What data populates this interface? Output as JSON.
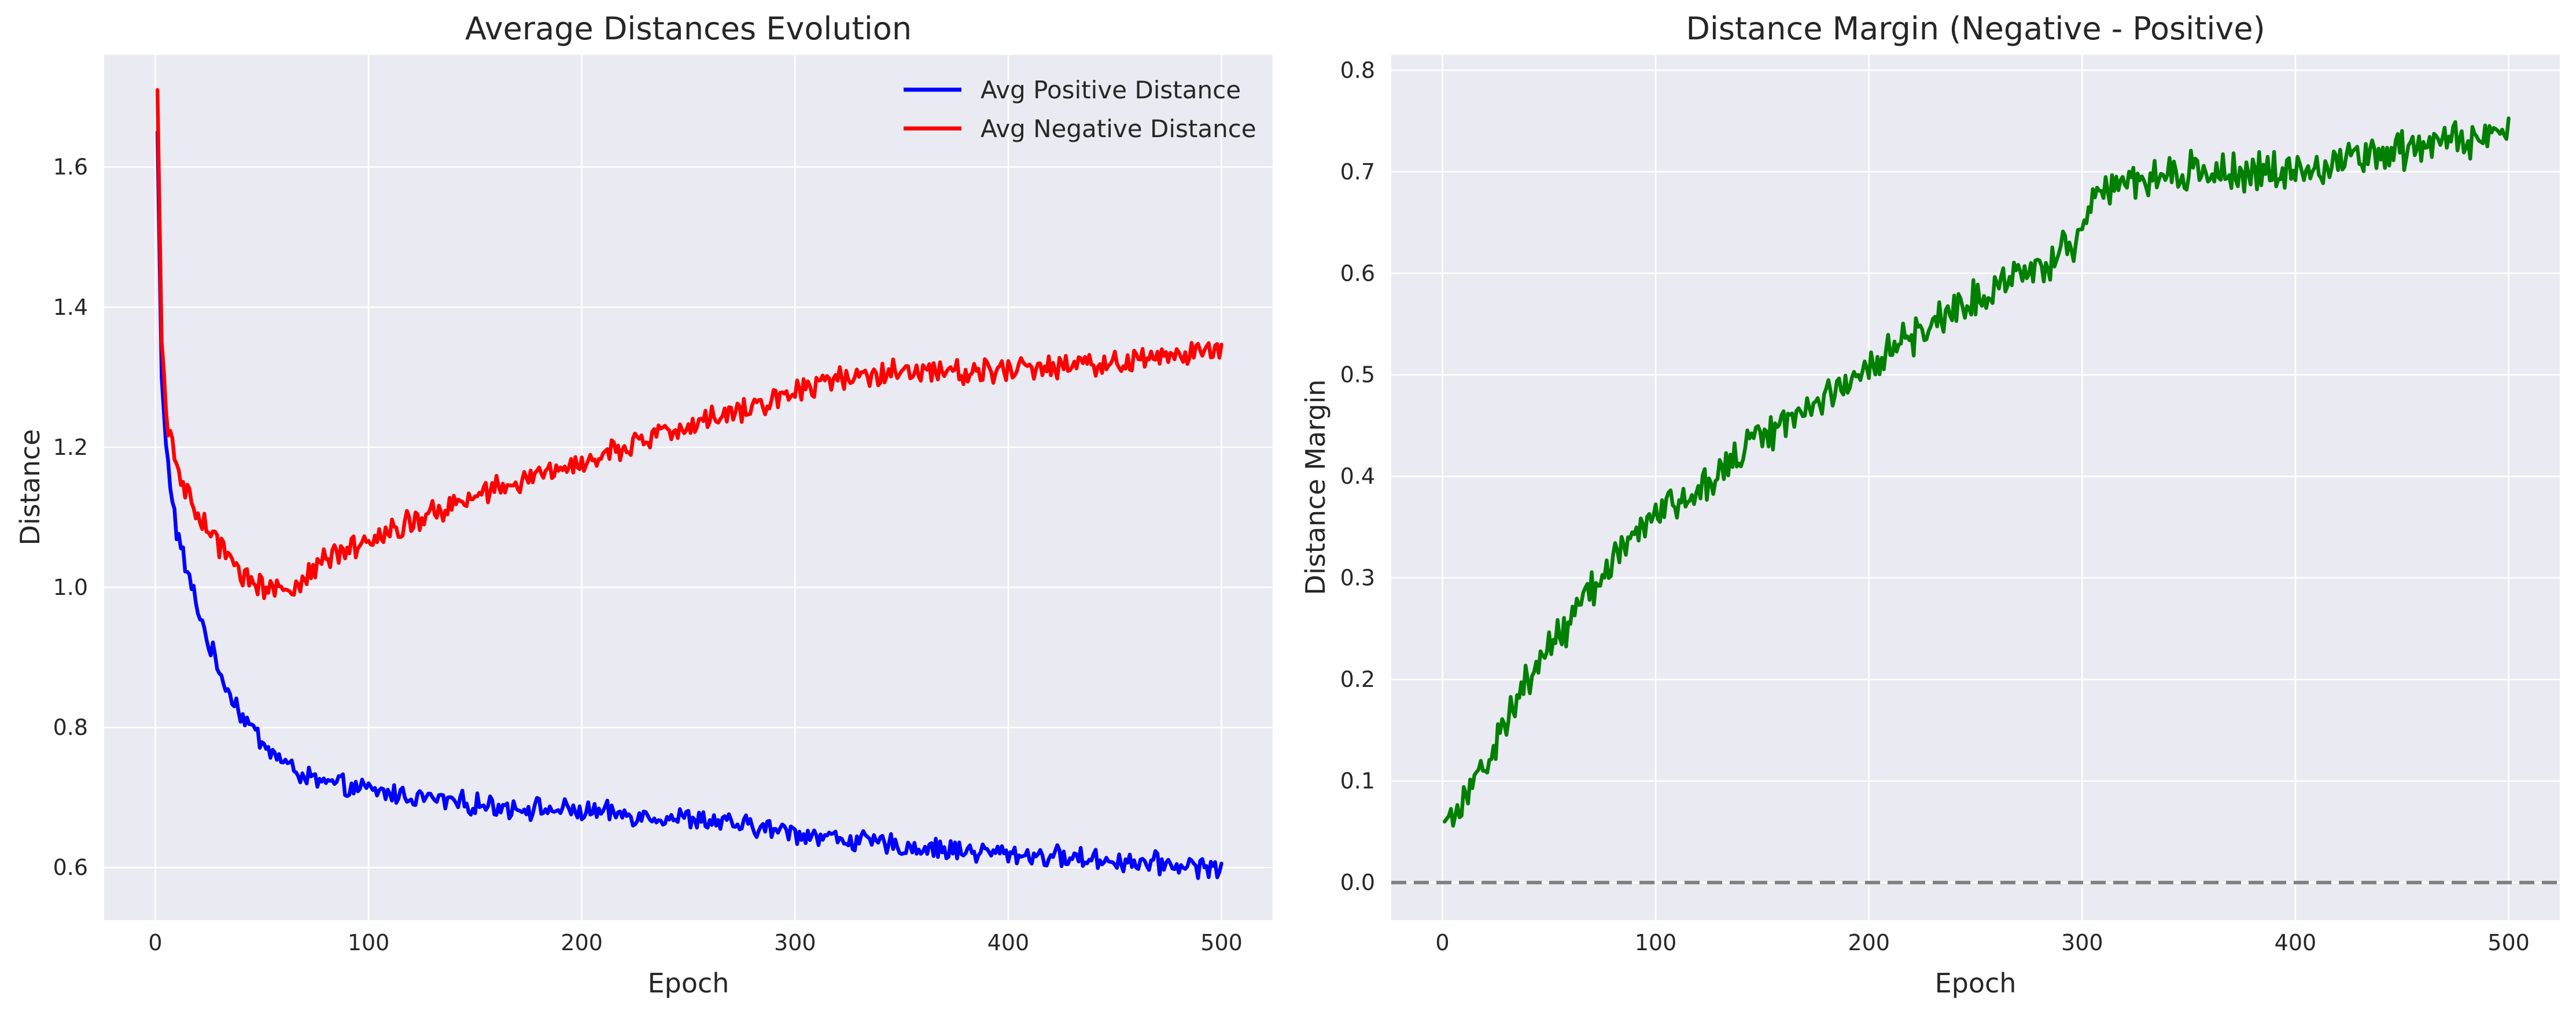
{
  "colors": {
    "panel_bg": "#eaeaf2",
    "grid": "#ffffff",
    "text": "#262626",
    "positive": "#0000ff",
    "negative": "#ff0000",
    "margin": "#008000",
    "zero_line": "#808080"
  },
  "chart_data": [
    {
      "type": "line",
      "title": "Average Distances Evolution",
      "xlabel": "Epoch",
      "ylabel": "Distance",
      "xlim": [
        -24,
        524
      ],
      "ylim": [
        0.525,
        1.76
      ],
      "xticks": [
        0,
        100,
        200,
        300,
        400,
        500
      ],
      "xtick_labels": [
        "0",
        "100",
        "200",
        "300",
        "400",
        "500"
      ],
      "yticks": [
        0.6,
        0.8,
        1.0,
        1.2,
        1.4,
        1.6
      ],
      "ytick_labels": [
        "0.6",
        "0.8",
        "1.0",
        "1.2",
        "1.4",
        "1.6"
      ],
      "grid": true,
      "legend_position": "top-right",
      "x_range": [
        1,
        500
      ],
      "series": [
        {
          "name": "Avg Positive Distance",
          "color": "#0000ff",
          "noise": 0.012,
          "points": [
            [
              1,
              1.65
            ],
            [
              3,
              1.3
            ],
            [
              5,
              1.2
            ],
            [
              10,
              1.08
            ],
            [
              15,
              1.02
            ],
            [
              20,
              0.97
            ],
            [
              25,
              0.92
            ],
            [
              30,
              0.88
            ],
            [
              40,
              0.82
            ],
            [
              50,
              0.78
            ],
            [
              60,
              0.75
            ],
            [
              70,
              0.73
            ],
            [
              80,
              0.72
            ],
            [
              100,
              0.71
            ],
            [
              150,
              0.69
            ],
            [
              200,
              0.68
            ],
            [
              250,
              0.67
            ],
            [
              300,
              0.65
            ],
            [
              350,
              0.63
            ],
            [
              400,
              0.62
            ],
            [
              450,
              0.61
            ],
            [
              500,
              0.6
            ]
          ]
        },
        {
          "name": "Avg Negative Distance",
          "color": "#ff0000",
          "noise": 0.014,
          "points": [
            [
              1,
              1.71
            ],
            [
              3,
              1.35
            ],
            [
              5,
              1.25
            ],
            [
              10,
              1.17
            ],
            [
              15,
              1.13
            ],
            [
              20,
              1.1
            ],
            [
              30,
              1.06
            ],
            [
              40,
              1.02
            ],
            [
              50,
              1.0
            ],
            [
              60,
              1.0
            ],
            [
              70,
              1.01
            ],
            [
              80,
              1.04
            ],
            [
              100,
              1.07
            ],
            [
              150,
              1.13
            ],
            [
              200,
              1.18
            ],
            [
              250,
              1.23
            ],
            [
              300,
              1.28
            ],
            [
              320,
              1.3
            ],
            [
              350,
              1.31
            ],
            [
              400,
              1.31
            ],
            [
              450,
              1.32
            ],
            [
              500,
              1.34
            ]
          ]
        }
      ]
    },
    {
      "type": "line",
      "title": "Distance Margin (Negative - Positive)",
      "xlabel": "Epoch",
      "ylabel": "Distance Margin",
      "xlim": [
        -24,
        524
      ],
      "ylim": [
        -0.037,
        0.815
      ],
      "xticks": [
        0,
        100,
        200,
        300,
        400,
        500
      ],
      "xtick_labels": [
        "0",
        "100",
        "200",
        "300",
        "400",
        "500"
      ],
      "yticks": [
        0.0,
        0.1,
        0.2,
        0.3,
        0.4,
        0.5,
        0.6,
        0.7,
        0.8
      ],
      "ytick_labels": [
        "0.0",
        "0.1",
        "0.2",
        "0.3",
        "0.4",
        "0.5",
        "0.6",
        "0.7",
        "0.8"
      ],
      "grid": true,
      "reference_line": {
        "y": 0.0,
        "style": "dashed",
        "color": "#808080"
      },
      "x_range": [
        1,
        500
      ],
      "series": [
        {
          "color": "#008000",
          "noise": 0.015,
          "points": [
            [
              1,
              0.06
            ],
            [
              10,
              0.085
            ],
            [
              20,
              0.115
            ],
            [
              30,
              0.16
            ],
            [
              40,
              0.2
            ],
            [
              50,
              0.23
            ],
            [
              60,
              0.26
            ],
            [
              70,
              0.29
            ],
            [
              80,
              0.32
            ],
            [
              90,
              0.34
            ],
            [
              100,
              0.36
            ],
            [
              120,
              0.39
            ],
            [
              150,
              0.44
            ],
            [
              180,
              0.48
            ],
            [
              200,
              0.51
            ],
            [
              230,
              0.55
            ],
            [
              260,
              0.59
            ],
            [
              290,
              0.62
            ],
            [
              299,
              0.63
            ],
            [
              301,
              0.67
            ],
            [
              320,
              0.69
            ],
            [
              350,
              0.7
            ],
            [
              400,
              0.7
            ],
            [
              450,
              0.72
            ],
            [
              500,
              0.74
            ]
          ]
        }
      ]
    }
  ]
}
